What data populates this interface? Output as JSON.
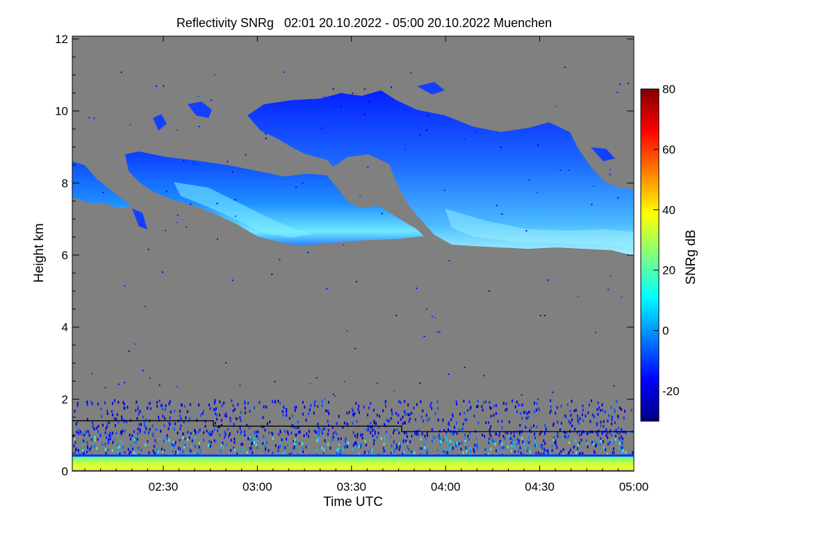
{
  "chart_data": {
    "type": "heatmap",
    "title": "Reflectivity SNRg   02:01 20.10.2022 - 05:00 20.10.2022 Muenchen",
    "xlabel": "Time UTC",
    "ylabel": "Height km",
    "xlim": [
      "02:01",
      "05:00"
    ],
    "ylim": [
      0,
      12
    ],
    "x_ticks": [
      "02:30",
      "03:00",
      "03:30",
      "04:00",
      "04:30",
      "05:00"
    ],
    "x_ticks_minutes": [
      150,
      180,
      210,
      240,
      270,
      300
    ],
    "y_ticks": [
      0,
      2,
      4,
      6,
      8,
      10,
      12
    ],
    "background_color": "#808080",
    "colorbar": {
      "label": "SNRg dB",
      "range": [
        -30,
        80
      ],
      "ticks": [
        -20,
        0,
        20,
        40,
        60,
        80
      ],
      "colormap": [
        "#00007f",
        "#0000ff",
        "#007fff",
        "#00ffff",
        "#7fff7f",
        "#ffff00",
        "#ff7f00",
        "#ff0000",
        "#7f0000"
      ]
    },
    "boundary_line": {
      "color": "#000000",
      "segments": [
        {
          "start": "02:01",
          "end": "02:46",
          "height_km": 1.4
        },
        {
          "start": "02:46",
          "end": "03:46",
          "height_km": 1.25
        },
        {
          "start": "03:46",
          "end": "05:00",
          "height_km": 1.1
        }
      ]
    },
    "layers": [
      {
        "name": "ice cloud lower",
        "x_range": [
          "02:01",
          "05:00"
        ],
        "height_km": [
          6.0,
          8.7
        ],
        "snr_db": [
          -15,
          10
        ]
      },
      {
        "name": "ice cloud upper",
        "x_range": [
          "02:58",
          "05:00"
        ],
        "height_km": [
          6.0,
          10.5
        ],
        "snr_db": [
          -20,
          5
        ]
      },
      {
        "name": "boundary layer clutter",
        "x_range": [
          "02:01",
          "05:00"
        ],
        "height_km": [
          0.3,
          2.0
        ],
        "snr_db": [
          -25,
          10
        ]
      },
      {
        "name": "surface band",
        "x_range": [
          "02:01",
          "05:00"
        ],
        "height_km": [
          0.0,
          0.35
        ],
        "snr_db": [
          15,
          40
        ]
      }
    ]
  }
}
